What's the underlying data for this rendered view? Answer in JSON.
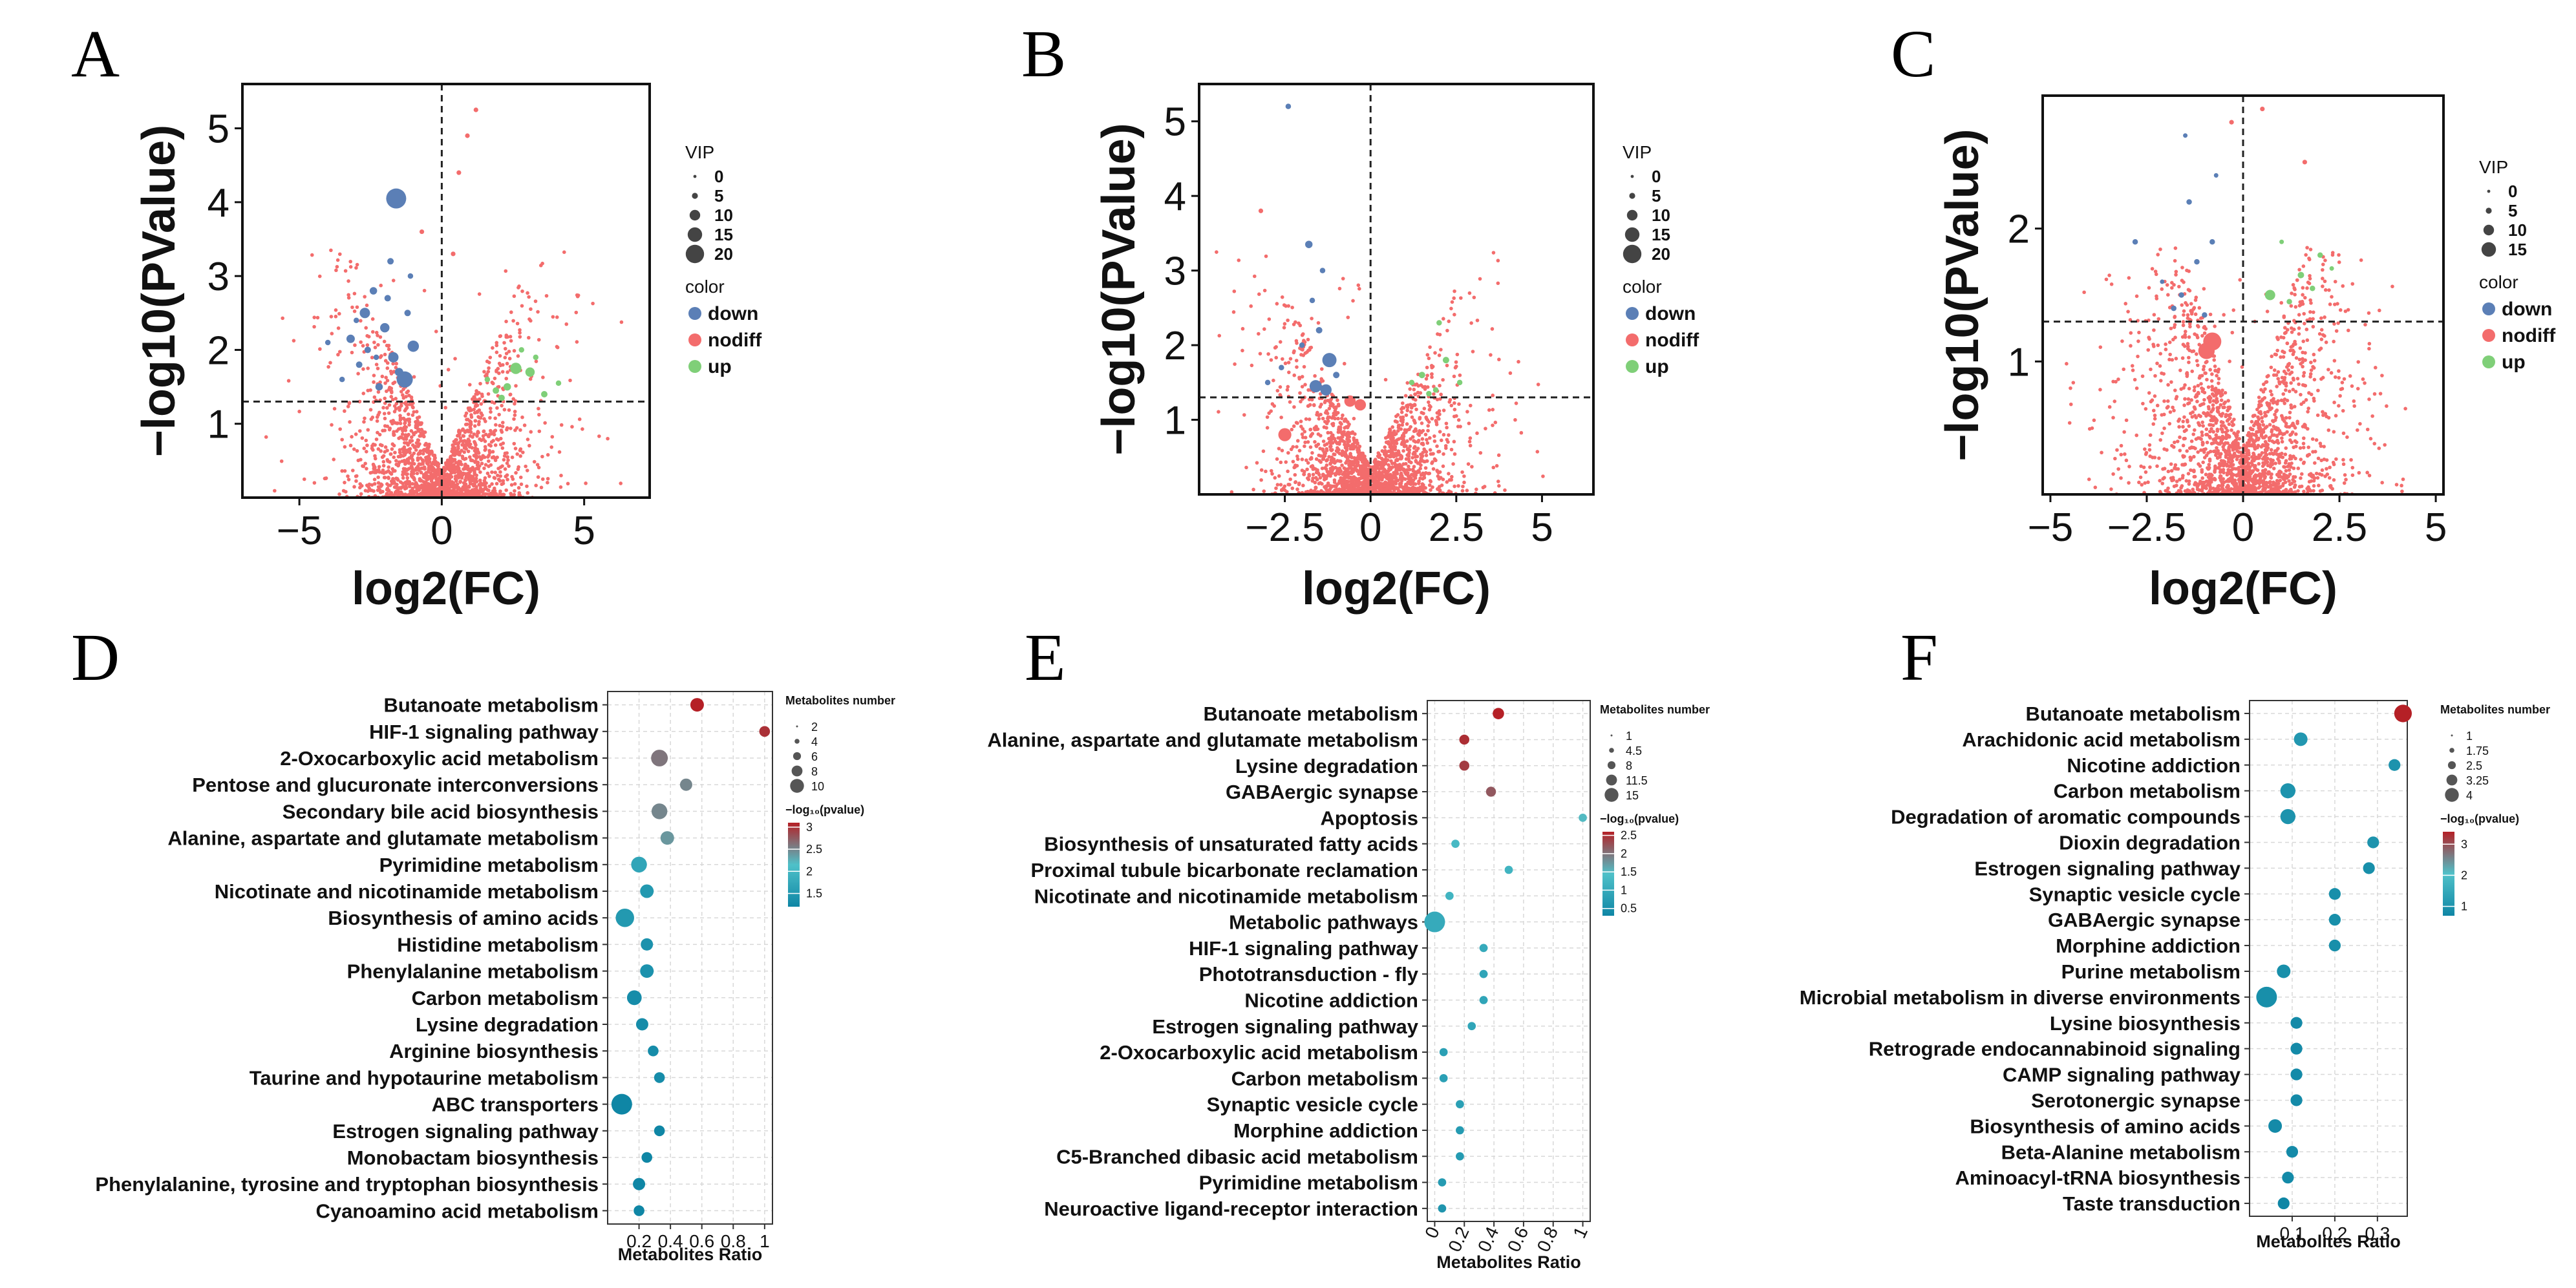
{
  "colors": {
    "down": "#5b7fb6",
    "nodiff": "#f36c6c",
    "up": "#7fcf78",
    "grid": "#d8d8d8",
    "enr_low": "#0f86a5",
    "enr_mid": "#4fc1c9",
    "enr_high": "#b52026"
  },
  "volcano_legend": {
    "vip_title": "VIP",
    "color_title": "color",
    "labels": [
      "down",
      "nodiff",
      "up"
    ]
  },
  "enrich_legend": {
    "number_title": "Metabolites number",
    "pvalue_title": "−log₁₀(pvalue)"
  },
  "chart_data": [
    {
      "type": "scatter",
      "letter": "A",
      "seed": 11,
      "xlabel": "log2(FC)",
      "ylabel": "−log10(PValue)",
      "xlim": [
        -7,
        7.3
      ],
      "ylim": [
        0,
        5.6
      ],
      "xticks": [
        -5,
        0,
        5
      ],
      "xtick_labels": [
        "−5",
        "0",
        "5"
      ],
      "yticks": [
        1,
        2,
        3,
        4,
        5
      ],
      "ytick_labels": [
        "1",
        "2",
        "3",
        "4",
        "5"
      ],
      "vline": 0,
      "hline": 1.3,
      "vip_levels": [
        0,
        5,
        10,
        15,
        20
      ],
      "vip_labels": [
        "0",
        "5",
        "10",
        "15",
        "20"
      ],
      "vip_max": 20,
      "bulk_points": 1900,
      "bulk_spread": 1.6,
      "down": [
        [
          -1.6,
          4.05,
          18
        ],
        [
          -2.7,
          2.5,
          8
        ],
        [
          -3.2,
          2.15,
          6
        ],
        [
          -1.0,
          2.05,
          9
        ],
        [
          -2.0,
          2.3,
          7
        ],
        [
          -1.3,
          1.6,
          14
        ],
        [
          -1.7,
          1.9,
          8
        ],
        [
          -2.4,
          2.8,
          5
        ],
        [
          -1.8,
          3.2,
          4
        ],
        [
          -2.9,
          1.8,
          4
        ],
        [
          -4.0,
          2.1,
          3
        ],
        [
          -1.5,
          1.7,
          6
        ],
        [
          -2.2,
          1.5,
          5
        ],
        [
          -1.2,
          2.5,
          4
        ],
        [
          -3.5,
          1.6,
          3
        ],
        [
          -1.9,
          2.7,
          4
        ],
        [
          -2.6,
          2.0,
          4
        ],
        [
          -1.1,
          3.0,
          3
        ],
        [
          -2.3,
          1.9,
          3
        ],
        [
          -3.0,
          2.4,
          3
        ]
      ],
      "up": [
        [
          2.6,
          1.75,
          9
        ],
        [
          3.1,
          1.7,
          7
        ],
        [
          2.3,
          1.5,
          5
        ],
        [
          1.9,
          1.45,
          4
        ],
        [
          3.6,
          1.4,
          4
        ],
        [
          2.8,
          2.0,
          3
        ],
        [
          1.6,
          1.6,
          3
        ],
        [
          3.3,
          1.9,
          3
        ],
        [
          2.1,
          1.35,
          4
        ],
        [
          4.1,
          1.55,
          3
        ]
      ],
      "extra_nodiff": [
        [
          1.2,
          5.25,
          2
        ],
        [
          0.6,
          4.4,
          2
        ],
        [
          0.4,
          3.3,
          2
        ],
        [
          0.9,
          4.9,
          2
        ],
        [
          -0.7,
          3.6,
          2
        ]
      ]
    },
    {
      "type": "scatter",
      "letter": "B",
      "seed": 22,
      "xlabel": "log2(FC)",
      "ylabel": "−log10(PValue)",
      "xlim": [
        -5,
        6.5
      ],
      "ylim": [
        0,
        5.5
      ],
      "xticks": [
        -2.5,
        0,
        2.5,
        5
      ],
      "xtick_labels": [
        "−2.5",
        "0",
        "2.5",
        "5"
      ],
      "yticks": [
        1,
        2,
        3,
        4,
        5
      ],
      "ytick_labels": [
        "1",
        "2",
        "3",
        "4",
        "5"
      ],
      "vline": 0,
      "hline": 1.3,
      "vip_levels": [
        0,
        5,
        10,
        15,
        20
      ],
      "vip_labels": [
        "0",
        "5",
        "10",
        "15",
        "20"
      ],
      "vip_max": 20,
      "bulk_points": 1900,
      "bulk_spread": 1.3,
      "down": [
        [
          -1.2,
          1.8,
          12
        ],
        [
          -1.6,
          1.45,
          10
        ],
        [
          -1.3,
          1.4,
          9
        ],
        [
          -1.8,
          3.35,
          5
        ],
        [
          -2.4,
          5.2,
          3
        ],
        [
          -1.5,
          2.2,
          4
        ],
        [
          -1.0,
          1.6,
          4
        ],
        [
          -2.0,
          2.0,
          3
        ],
        [
          -1.7,
          2.6,
          3
        ],
        [
          -2.6,
          1.7,
          3
        ],
        [
          -1.4,
          3.0,
          3
        ],
        [
          -3.0,
          1.5,
          3
        ]
      ],
      "up": [
        [
          1.5,
          1.6,
          4
        ],
        [
          2.2,
          1.8,
          4
        ],
        [
          1.9,
          1.4,
          3
        ],
        [
          2.6,
          1.5,
          3
        ],
        [
          1.2,
          1.5,
          3
        ],
        [
          2.0,
          2.3,
          3
        ],
        [
          1.7,
          1.35,
          3
        ]
      ],
      "extra_nodiff": [
        [
          -2.5,
          0.8,
          7
        ],
        [
          -3.2,
          3.8,
          2
        ],
        [
          -0.3,
          1.2,
          6
        ],
        [
          -0.6,
          1.25,
          6
        ]
      ]
    },
    {
      "type": "scatter",
      "letter": "C",
      "seed": 33,
      "xlabel": "log2(FC)",
      "ylabel": "−log10(PValue)",
      "xlim": [
        -5.2,
        5.2
      ],
      "ylim": [
        0,
        3.0
      ],
      "xticks": [
        -5,
        -2.5,
        0,
        2.5,
        5
      ],
      "xtick_labels": [
        "−5",
        "−2.5",
        "0",
        "2.5",
        "5"
      ],
      "yticks": [
        1,
        2
      ],
      "ytick_labels": [
        "1",
        "2"
      ],
      "vline": 0,
      "hline": 1.3,
      "vip_levels": [
        0,
        5,
        10,
        15
      ],
      "vip_labels": [
        "0",
        "5",
        "10",
        "15"
      ],
      "vip_max": 15,
      "bulk_points": 1900,
      "bulk_spread": 1.3,
      "down": [
        [
          -1.2,
          1.75,
          3
        ],
        [
          -1.6,
          1.5,
          3
        ],
        [
          -0.8,
          1.9,
          3
        ],
        [
          -1.4,
          2.2,
          3
        ],
        [
          -2.8,
          1.9,
          3
        ],
        [
          -1.0,
          1.35,
          3
        ],
        [
          -1.8,
          1.4,
          3
        ],
        [
          -0.7,
          2.4,
          2
        ],
        [
          -1.5,
          2.7,
          2
        ],
        [
          -2.1,
          1.6,
          2
        ]
      ],
      "up": [
        [
          0.7,
          1.5,
          8
        ],
        [
          1.5,
          1.65,
          4
        ],
        [
          1.2,
          1.45,
          3
        ],
        [
          2.0,
          1.8,
          3
        ],
        [
          1.8,
          1.55,
          3
        ],
        [
          1.0,
          1.9,
          2
        ],
        [
          2.3,
          1.7,
          2
        ]
      ],
      "extra_nodiff": [
        [
          -0.8,
          1.15,
          10
        ],
        [
          -0.95,
          1.08,
          9
        ],
        [
          0.5,
          2.9,
          2
        ],
        [
          -0.3,
          2.8,
          2
        ],
        [
          1.6,
          2.5,
          2
        ]
      ]
    },
    {
      "type": "scatter",
      "letter": "D",
      "xlabel": "Metabolites Ratio",
      "xlim": [
        0,
        1.05
      ],
      "xticks": [
        0.2,
        0.4,
        0.6,
        0.8,
        1
      ],
      "xtick_labels": [
        "0.2",
        "0.4",
        "0.6",
        "0.8",
        "1"
      ],
      "xtick_rotate": false,
      "size_title": "Metabolites number",
      "size_levels": [
        2,
        4,
        6,
        8,
        10
      ],
      "size_labels": [
        "2",
        "4",
        "6",
        "8",
        "10"
      ],
      "size_max": 12,
      "color_ticks": [
        1.5,
        2,
        2.5,
        3
      ],
      "color_tick_labels": [
        "1.5",
        "2",
        "2.5",
        "3"
      ],
      "color_range": [
        1.2,
        3.1
      ],
      "pathways": [
        "Butanoate metabolism",
        "HIF-1 signaling pathway",
        "2-Oxocarboxylic acid metabolism",
        "Pentose and glucuronate interconversions",
        "Secondary bile acid biosynthesis",
        "Alanine, aspartate and glutamate metabolism",
        "Pyrimidine metabolism",
        "Nicotinate and nicotinamide metabolism",
        "Biosynthesis of amino acids",
        "Histidine metabolism",
        "Phenylalanine metabolism",
        "Carbon metabolism",
        "Lysine degradation",
        "Arginine biosynthesis",
        "Taurine and hypotaurine metabolism",
        "ABC transporters",
        "Estrogen signaling pathway",
        "Monobactam biosynthesis",
        "Phenylalanine, tyrosine and tryptophan biosynthesis",
        "Cyanoamino acid metabolism"
      ],
      "ratio": [
        0.57,
        1.0,
        0.33,
        0.5,
        0.33,
        0.38,
        0.2,
        0.25,
        0.11,
        0.25,
        0.25,
        0.17,
        0.22,
        0.29,
        0.33,
        0.09,
        0.33,
        0.25,
        0.2,
        0.2
      ],
      "number": [
        4,
        2,
        7,
        3,
        6,
        4,
        6,
        4,
        9,
        3,
        4,
        5,
        3,
        2,
        2,
        12,
        2,
        2,
        3,
        2
      ],
      "pvalue": [
        3.1,
        3.0,
        2.6,
        2.5,
        2.5,
        2.4,
        1.7,
        1.5,
        1.5,
        1.4,
        1.4,
        1.3,
        1.3,
        1.3,
        1.3,
        1.2,
        1.2,
        1.2,
        1.2,
        1.2
      ]
    },
    {
      "type": "scatter",
      "letter": "E",
      "xlabel": "Metabolites Ratio",
      "xlim": [
        -0.05,
        1.05
      ],
      "xticks": [
        0,
        0.2,
        0.4,
        0.6,
        0.8,
        1
      ],
      "xtick_labels": [
        "0",
        "0.2",
        "0.4",
        "0.6",
        "0.8",
        "1"
      ],
      "xtick_rotate": true,
      "size_title": "Metabolites number",
      "size_levels": [
        1,
        4.5,
        8,
        11.5,
        15
      ],
      "size_labels": [
        "1",
        "4.5",
        "8",
        "11.5",
        "15"
      ],
      "size_max": 15,
      "color_ticks": [
        0.5,
        1,
        1.5,
        2,
        2.5
      ],
      "color_tick_labels": [
        "0.5",
        "1",
        "1.5",
        "2",
        "2.5"
      ],
      "color_range": [
        0.3,
        2.6
      ],
      "pathways": [
        "Butanoate metabolism",
        "Alanine, aspartate and glutamate metabolism",
        "Lysine degradation",
        "GABAergic synapse",
        "Apoptosis",
        "Biosynthesis of unsaturated fatty acids",
        "Proximal tubule bicarbonate reclamation",
        "Nicotinate and nicotinamide metabolism",
        "Metabolic pathways",
        "HIF-1 signaling pathway",
        "Phototransduction - fly",
        "Nicotine addiction",
        "Estrogen signaling pathway",
        "2-Oxocarboxylic acid metabolism",
        "Carbon metabolism",
        "Synaptic vesicle cycle",
        "Morphine addiction",
        "C5-Branched dibasic acid metabolism",
        "Pyrimidine metabolism",
        "Neuroactive ligand-receptor interaction"
      ],
      "ratio": [
        0.43,
        0.2,
        0.2,
        0.38,
        1.0,
        0.14,
        0.5,
        0.1,
        0.0,
        0.33,
        0.33,
        0.33,
        0.25,
        0.06,
        0.06,
        0.17,
        0.17,
        0.17,
        0.05,
        0.05
      ],
      "number": [
        3,
        2,
        2,
        2,
        1,
        1,
        1,
        1,
        15,
        1,
        1,
        1,
        1,
        1,
        1,
        1,
        1,
        1,
        1,
        1
      ],
      "pvalue": [
        2.6,
        2.5,
        2.4,
        2.2,
        1.5,
        1.3,
        1.2,
        1.2,
        1.0,
        1.0,
        0.9,
        0.9,
        0.9,
        0.8,
        0.8,
        0.8,
        0.7,
        0.7,
        0.7,
        0.6
      ]
    },
    {
      "type": "scatter",
      "letter": "F",
      "xlabel": "Metabolites Ratio",
      "xlim": [
        0,
        0.37
      ],
      "xticks": [
        0.1,
        0.2,
        0.3
      ],
      "xtick_labels": [
        "0.1",
        "0.2",
        "0.3"
      ],
      "xtick_rotate": false,
      "size_title": "Metabolites number",
      "size_levels": [
        1,
        1.75,
        2.5,
        3.25,
        4
      ],
      "size_labels": [
        "1",
        "1.75",
        "2.5",
        "3.25",
        "4"
      ],
      "size_max": 4.5,
      "color_ticks": [
        1,
        2,
        3
      ],
      "color_tick_labels": [
        "1",
        "2",
        "3"
      ],
      "color_range": [
        0.7,
        3.4
      ],
      "pathways": [
        "Butanoate metabolism",
        "Arachidonic acid metabolism",
        "Nicotine addiction",
        "Carbon metabolism",
        "Degradation of aromatic compounds",
        "Dioxin degradation",
        "Estrogen signaling pathway",
        "Synaptic vesicle cycle",
        "GABAergic synapse",
        "Morphine addiction",
        "Purine metabolism",
        "Microbial metabolism in diverse environments",
        "Lysine biosynthesis",
        "Retrograde endocannabinoid signaling",
        "CAMP signaling pathway",
        "Serotonergic synapse",
        "Biosynthesis of amino acids",
        "Beta-Alanine metabolism",
        "Aminoacyl-tRNA biosynthesis",
        "Taste transduction"
      ],
      "ratio": [
        0.36,
        0.12,
        0.34,
        0.09,
        0.09,
        0.29,
        0.28,
        0.2,
        0.2,
        0.2,
        0.08,
        0.04,
        0.11,
        0.11,
        0.11,
        0.11,
        0.06,
        0.1,
        0.09,
        0.08
      ],
      "number": [
        3,
        1.5,
        1,
        2,
        2,
        1,
        1,
        1,
        1,
        1,
        1.5,
        4.5,
        1,
        1,
        1,
        1,
        1.5,
        1,
        1,
        1
      ],
      "pvalue": [
        3.4,
        1.1,
        1.0,
        1.0,
        1.0,
        1.0,
        0.9,
        0.9,
        0.9,
        0.9,
        0.9,
        0.9,
        0.8,
        0.8,
        0.8,
        0.8,
        0.8,
        0.8,
        0.8,
        0.7
      ]
    }
  ]
}
